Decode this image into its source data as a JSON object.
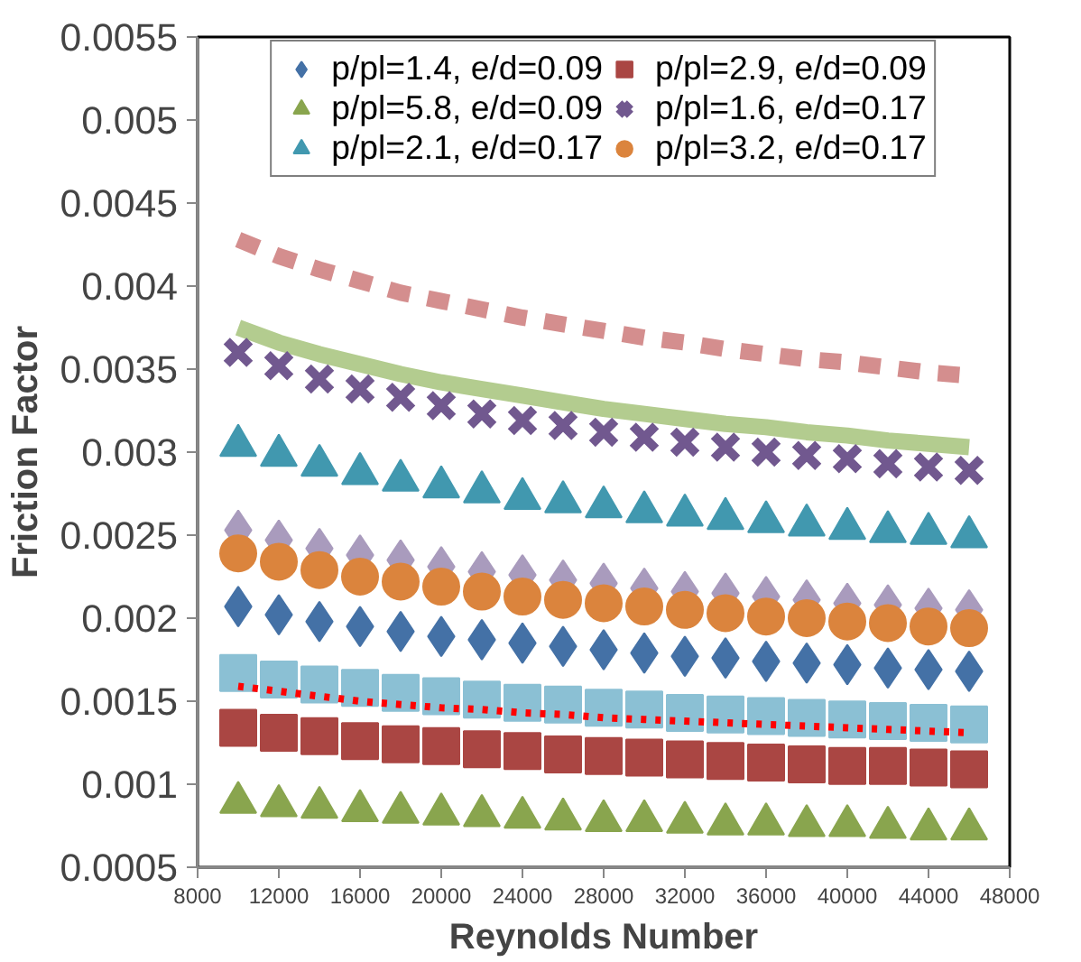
{
  "chart_data": {
    "type": "scatter",
    "xlabel": "Reynolds Number",
    "ylabel": "Friction Factor",
    "x": [
      10000,
      12000,
      14000,
      16000,
      18000,
      20000,
      22000,
      24000,
      26000,
      28000,
      30000,
      32000,
      34000,
      36000,
      38000,
      40000,
      42000,
      44000,
      46000
    ],
    "xlim": [
      8000,
      48000
    ],
    "xticks": [
      8000,
      12000,
      16000,
      20000,
      24000,
      28000,
      32000,
      36000,
      40000,
      44000,
      48000
    ],
    "ylim": [
      0.0005,
      0.0055
    ],
    "yticks": [
      0.0005,
      0.001,
      0.0015,
      0.002,
      0.0025,
      0.003,
      0.0035,
      0.004,
      0.0045,
      0.005,
      0.0055
    ],
    "grid": false,
    "legend": "top",
    "series": [
      {
        "type": "line",
        "line_style": "dashed",
        "color": "#d48e8e",
        "values": [
          0.00428,
          0.00418,
          0.0041,
          0.00403,
          0.00396,
          0.00391,
          0.00386,
          0.00381,
          0.00377,
          0.00373,
          0.00369,
          0.00366,
          0.00362,
          0.00359,
          0.00356,
          0.00354,
          0.00351,
          0.00348,
          0.00346
        ]
      },
      {
        "type": "line",
        "line_style": "solid",
        "color": "#b3cc8f",
        "values": [
          0.00375,
          0.00366,
          0.00359,
          0.00353,
          0.00347,
          0.00342,
          0.00338,
          0.00334,
          0.0033,
          0.00326,
          0.00323,
          0.0032,
          0.00317,
          0.00315,
          0.00312,
          0.0031,
          0.00307,
          0.00305,
          0.00303
        ]
      },
      {
        "marker": "diamond",
        "color": "#a99bbd",
        "values": [
          0.00253,
          0.00247,
          0.00242,
          0.00238,
          0.00235,
          0.00231,
          0.00228,
          0.00226,
          0.00223,
          0.00221,
          0.00218,
          0.00216,
          0.00215,
          0.00213,
          0.00211,
          0.00209,
          0.00208,
          0.00206,
          0.00205
        ]
      },
      {
        "marker": "square",
        "color": "#8bc0d4",
        "values": [
          0.00167,
          0.00163,
          0.0016,
          0.00158,
          0.00155,
          0.00153,
          0.00151,
          0.00149,
          0.00148,
          0.00146,
          0.00145,
          0.00143,
          0.00142,
          0.00141,
          0.0014,
          0.00139,
          0.00138,
          0.00137,
          0.00136
        ]
      },
      {
        "type": "line",
        "line_style": "dotted",
        "color": "#ff0000",
        "values": [
          0.00159,
          0.00156,
          0.00153,
          0.0015,
          0.00148,
          0.00146,
          0.00145,
          0.00143,
          0.00142,
          0.0014,
          0.00139,
          0.00138,
          0.00137,
          0.00136,
          0.00135,
          0.00134,
          0.00133,
          0.00132,
          0.00131
        ]
      },
      {
        "marker": "diamond",
        "name": "p/pl=1.4, e/d=0.09",
        "color": "#4471a6",
        "values": [
          0.00207,
          0.00202,
          0.00198,
          0.00195,
          0.00192,
          0.00189,
          0.00187,
          0.00185,
          0.00183,
          0.00181,
          0.00179,
          0.00177,
          0.00176,
          0.00174,
          0.00173,
          0.00172,
          0.0017,
          0.00169,
          0.00168
        ]
      },
      {
        "marker": "square",
        "name": "p/pl=2.9, e/d=0.09",
        "color": "#aa4643",
        "values": [
          0.00134,
          0.00131,
          0.00129,
          0.00126,
          0.00124,
          0.00123,
          0.00121,
          0.0012,
          0.00118,
          0.00117,
          0.00116,
          0.00115,
          0.00114,
          0.00113,
          0.00112,
          0.00111,
          0.00111,
          0.0011,
          0.00109
        ]
      },
      {
        "marker": "triangle",
        "name": "p/pl=5.8, e/d=0.09",
        "color": "#89a54e",
        "values": [
          0.00089,
          0.00087,
          0.00086,
          0.00084,
          0.00083,
          0.00082,
          0.00081,
          0.0008,
          0.00079,
          0.00078,
          0.00078,
          0.00077,
          0.00076,
          0.00076,
          0.00075,
          0.00075,
          0.00074,
          0.00073,
          0.00073
        ]
      },
      {
        "marker": "cross",
        "name": "p/pl=1.6, e/d=0.17",
        "color": "#71588f",
        "values": [
          0.0036,
          0.00352,
          0.00344,
          0.00338,
          0.00333,
          0.00328,
          0.00323,
          0.00319,
          0.00316,
          0.00312,
          0.00309,
          0.00306,
          0.00303,
          0.003,
          0.00298,
          0.00296,
          0.00293,
          0.00291,
          0.00289
        ]
      },
      {
        "marker": "triangle",
        "name": "p/pl=2.1, e/d=0.17",
        "color": "#4198af",
        "values": [
          0.00304,
          0.00298,
          0.00292,
          0.00287,
          0.00283,
          0.00279,
          0.00276,
          0.00272,
          0.0027,
          0.00267,
          0.00264,
          0.00262,
          0.0026,
          0.00258,
          0.00256,
          0.00254,
          0.00252,
          0.00251,
          0.00249
        ]
      },
      {
        "marker": "circle",
        "name": "p/pl=3.2, e/d=0.17",
        "color": "#db843d",
        "values": [
          0.00239,
          0.00234,
          0.00229,
          0.00225,
          0.00222,
          0.00219,
          0.00216,
          0.00213,
          0.00211,
          0.00209,
          0.00207,
          0.00205,
          0.00203,
          0.00201,
          0.002,
          0.00198,
          0.00197,
          0.00195,
          0.00194
        ]
      }
    ]
  }
}
